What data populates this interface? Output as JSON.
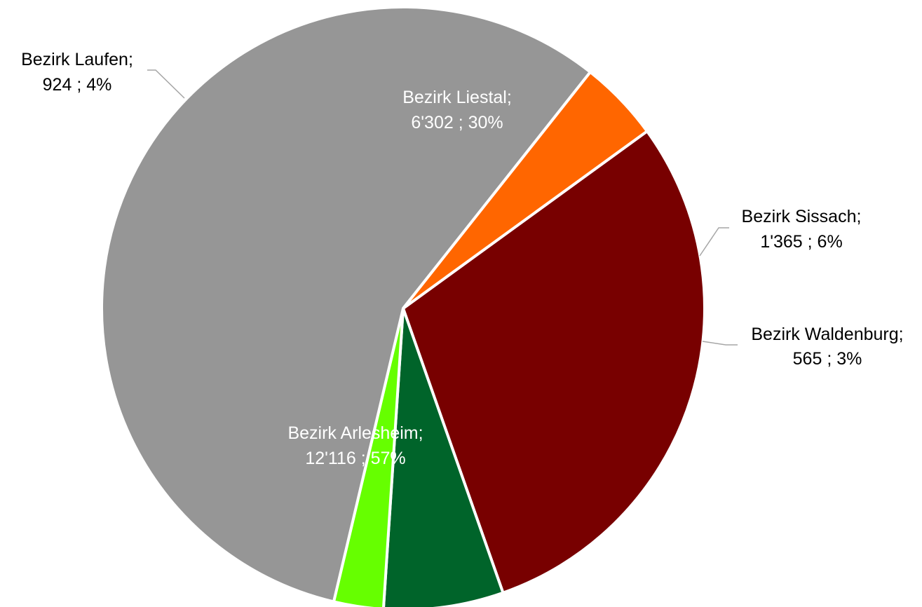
{
  "chart_data": {
    "type": "pie",
    "title": "",
    "total": 21272,
    "start_angle_deg": -36,
    "direction": "clockwise",
    "legend": "none",
    "slices": [
      {
        "key": "liestal",
        "name": "Bezirk Liestal;",
        "value": 6302,
        "value_label": "6'302 ; 30%",
        "percent": 30,
        "color": "#780000",
        "label_color": "#ffffff",
        "label_position": "inside"
      },
      {
        "key": "sissach",
        "name": "Bezirk Sissach;",
        "value": 1365,
        "value_label": "1'365 ; 6%",
        "percent": 6,
        "color": "#00642a",
        "label_color": "#000000",
        "label_position": "outside"
      },
      {
        "key": "waldenburg",
        "name": "Bezirk Waldenburg;",
        "value": 565,
        "value_label": "565 ; 3%",
        "percent": 3,
        "color": "#66ff00",
        "label_color": "#000000",
        "label_position": "outside"
      },
      {
        "key": "arlesheim",
        "name": "Bezirk Arlesheim;",
        "value": 12116,
        "value_label": "12'116 ; 57%",
        "percent": 57,
        "color": "#969696",
        "label_color": "#ffffff",
        "label_position": "inside"
      },
      {
        "key": "laufen",
        "name": "Bezirk Laufen;",
        "value": 924,
        "value_label": "924 ; 4%",
        "percent": 4,
        "color": "#ff6600",
        "label_color": "#000000",
        "label_position": "outside"
      }
    ]
  }
}
